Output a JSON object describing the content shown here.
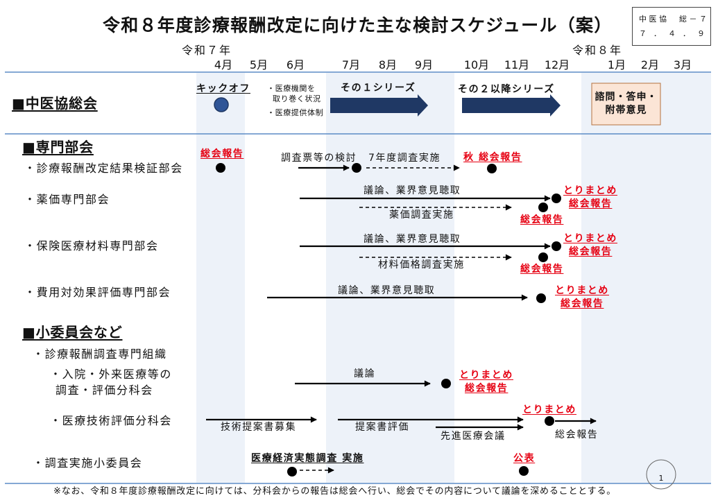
{
  "title": "令和８年度診療報酬改定に向けた主な検討スケジュール（案）",
  "doc_badge": {
    "line1": "中医協　総－７",
    "line2": "７．４．９"
  },
  "timeline": {
    "year_start": "令和７年",
    "year_end": "令和８年",
    "months": [
      "4月",
      "5月",
      "6月",
      "7月",
      "8月",
      "9月",
      "10月",
      "11月",
      "12月",
      "1月",
      "2月",
      "3月"
    ]
  },
  "general_assembly": {
    "heading": "■中医協総会",
    "kickoff": "キックオフ",
    "topics": [
      "・医療機関を",
      "取り巻く状況",
      "・医療提供体制"
    ],
    "series_1": "その１シリーズ",
    "series_2": "その２以降シリーズ",
    "final_box": [
      "諮問・答申・",
      "附帯意見"
    ]
  },
  "expert_committees": {
    "heading": "■専門部会",
    "verification": {
      "label": "・診療報酬改定結果検証部会",
      "report_start": "総会報告",
      "step_1": "調査票等の検討",
      "step_2": "7年度調査実施",
      "report_autumn": "秋 総会報告"
    },
    "drug_price": {
      "label": "・薬価専門部会",
      "discussion": "議論、業界意見聴取",
      "survey": "薬価調査実施",
      "summary": "とりまとめ",
      "summary_report": "総会報告",
      "survey_report": "総会報告"
    },
    "materials": {
      "label": "・保険医療材料専門部会",
      "discussion": "議論、業界意見聴取",
      "survey": "材料価格調査実施",
      "summary": "とりまとめ",
      "summary_report": "総会報告",
      "survey_report": "総会報告"
    },
    "cost_effectiveness": {
      "label": "・費用対効果評価専門部会",
      "discussion": "議論、業界意見聴取",
      "summary": "とりまとめ",
      "summary_report": "総会報告"
    }
  },
  "subcommittees": {
    "heading": "■小委員会など",
    "survey_org": {
      "label": "・診療報酬調査専門組織"
    },
    "inpatient": {
      "label": [
        "・入院・外来医療等の",
        "調査・評価分科会"
      ],
      "discussion": "議論",
      "summary": "とりまとめ",
      "summary_report": "総会報告"
    },
    "tech_assessment": {
      "label": "・医療技術評価分科会",
      "step_1": "技術提案書募集",
      "step_2": "提案書評価",
      "step_3": "先進医療会議",
      "summary": "とりまとめ",
      "report": "総会報告"
    },
    "survey_subcommittee": {
      "label": "・調査実施小委員会",
      "survey": "医療経済実態調査 実施",
      "publish": "公表"
    }
  },
  "page_number": "1",
  "footnote": "※なお、令和８年度診療報酬改定に向けては、分科会からの報告は総会へ行い、総会でその内容について議論を深めることとする。",
  "colors": {
    "rule": "#5b8bc6",
    "band": "#edf2f9",
    "arrow_navy": "#1f3864",
    "marker_blue": "#2f5597",
    "emphasis_red": "#e60012",
    "box_fill": "#fbe5d6",
    "box_stroke": "#b4713f"
  }
}
